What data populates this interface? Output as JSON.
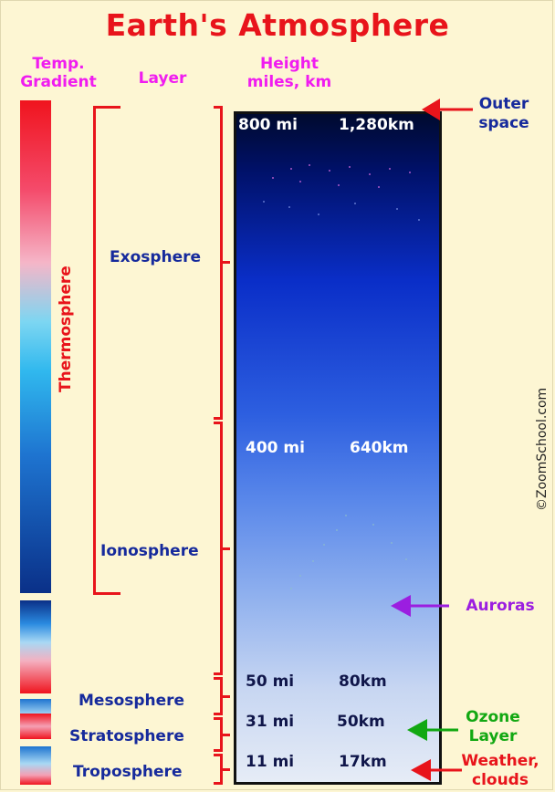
{
  "title": "Earth's Atmosphere",
  "headers": {
    "temp_gradient": [
      "Temp.",
      "Gradient"
    ],
    "layer": "Layer",
    "height": [
      "Height",
      "miles, km"
    ]
  },
  "layers": {
    "thermosphere": "Thermosphere",
    "exosphere": "Exosphere",
    "ionosphere": "Ionosphere",
    "mesosphere": "Mesosphere",
    "stratosphere": "Stratosphere",
    "troposphere": "Troposphere"
  },
  "heights": [
    {
      "mi": "800 mi",
      "km": "1,280km"
    },
    {
      "mi": "400 mi",
      "km": "640km"
    },
    {
      "mi": "50 mi",
      "km": "80km"
    },
    {
      "mi": "31 mi",
      "km": "50km"
    },
    {
      "mi": "11 mi",
      "km": "17km"
    }
  ],
  "annotations": {
    "outer_space": [
      "Outer",
      "space"
    ],
    "auroras": "Auroras",
    "ozone": [
      "Ozone",
      "Layer"
    ],
    "weather": [
      "Weather,",
      "clouds"
    ]
  },
  "credit": "©ZoomSchool.com",
  "colors": {
    "title": "#e8141b",
    "header": "#f01cf0",
    "layer_text": "#162a9c",
    "outer_space_arrow": "#e8141b",
    "auroras_arrow": "#9b1ee0",
    "ozone_arrow": "#12a812",
    "weather_arrow": "#e8141b"
  }
}
